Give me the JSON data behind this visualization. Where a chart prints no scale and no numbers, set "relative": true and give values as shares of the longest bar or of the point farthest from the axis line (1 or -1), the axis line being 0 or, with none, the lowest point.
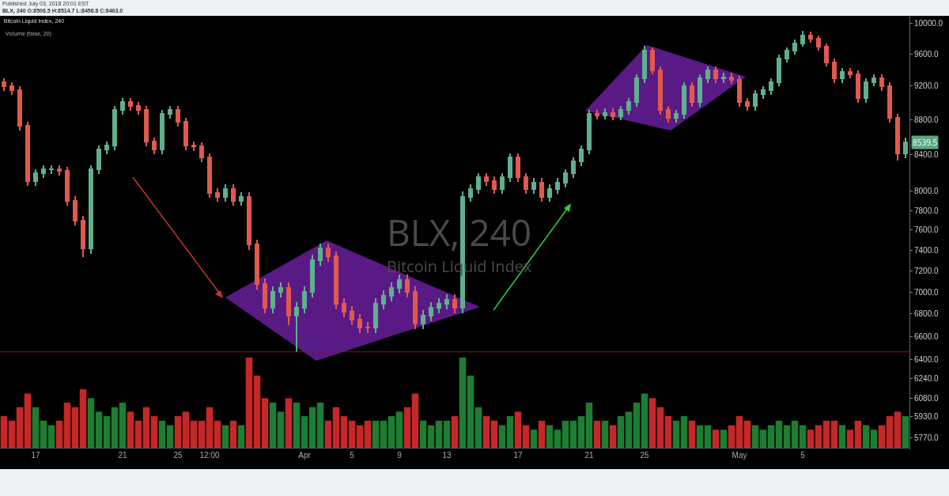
{
  "chart_data": [
    {
      "type": "candlestick",
      "title": "Bitcoin Liquid Index, 240",
      "log": "y",
      "annotations": [
        "Published July 03, 2018 20:01 EST",
        "BLX, 240 O:8506.5 H:8514.7 L:8456.8 C:8463.0",
        "Volume (false, 20)",
        "BLX, 240",
        "Bitcoin Liquid Index",
        {
          "text": "8539.5",
          "y": 8539.5
        }
      ],
      "categories": [
        null,
        null,
        null,
        null,
        "17",
        null,
        null,
        null,
        null,
        null,
        null,
        null,
        null,
        null,
        null,
        "21",
        null,
        null,
        null,
        null,
        null,
        null,
        "25",
        null,
        null,
        null,
        "12:00",
        null,
        null,
        null,
        null,
        null,
        null,
        null,
        null,
        null,
        null,
        null,
        "Apr",
        null,
        null,
        null,
        null,
        null,
        "5",
        null,
        null,
        null,
        null,
        null,
        "9",
        null,
        null,
        null,
        null,
        null,
        "13",
        null,
        null,
        null,
        null,
        null,
        null,
        null,
        null,
        "17",
        null,
        null,
        null,
        null,
        null,
        null,
        null,
        null,
        "21",
        null,
        null,
        null,
        null,
        null,
        null,
        "25",
        null,
        null,
        null,
        null,
        null,
        null,
        null,
        null,
        null,
        null,
        null,
        "May",
        null,
        null,
        null,
        null,
        null,
        null,
        null,
        "5",
        null,
        null,
        null,
        null,
        null,
        null,
        null,
        null,
        null,
        null,
        null,
        null,
        null
      ],
      "ohlc": [
        [
          9244,
          9294,
          9145,
          9195
        ],
        [
          9195,
          9245,
          9097,
          9147
        ],
        [
          9147,
          9197,
          8675,
          8725
        ],
        [
          8725,
          8775,
          8057,
          8107
        ],
        [
          8107,
          8242,
          8057,
          8192
        ],
        [
          8192,
          8285,
          8142,
          8235
        ],
        [
          8235,
          8285,
          8185,
          8240
        ],
        [
          8240,
          8285,
          8168,
          8218
        ],
        [
          8218,
          8268,
          7847,
          7897
        ],
        [
          7897,
          7947,
          7643,
          7693
        ],
        [
          7693,
          7743,
          7330,
          7416
        ],
        [
          7416,
          8285,
          7366,
          8235
        ],
        [
          8235,
          8504,
          8185,
          8454
        ],
        [
          8454,
          8548,
          8404,
          8498
        ],
        [
          8498,
          8960,
          8448,
          8910
        ],
        [
          8910,
          9054,
          8860,
          9004
        ],
        [
          9004,
          9054,
          8907,
          8957
        ],
        [
          8957,
          9007,
          8860,
          8910
        ],
        [
          8910,
          8960,
          8493,
          8543
        ],
        [
          8543,
          8593,
          8404,
          8454
        ],
        [
          8454,
          8913,
          8404,
          8863
        ],
        [
          8863,
          8960,
          8813,
          8910
        ],
        [
          8910,
          8960,
          8721,
          8771
        ],
        [
          8771,
          8821,
          8448,
          8498
        ],
        [
          8498,
          8548,
          8440,
          8490
        ],
        [
          8490,
          8540,
          8316,
          8366
        ],
        [
          8366,
          8416,
          7930,
          7980
        ],
        [
          7980,
          8030,
          7889,
          7939
        ],
        [
          7939,
          8072,
          7889,
          8022
        ],
        [
          8022,
          8072,
          7847,
          7897
        ],
        [
          7897,
          7989,
          7847,
          7939
        ],
        [
          7939,
          7989,
          7405,
          7455
        ],
        [
          7455,
          7505,
          7025,
          7075
        ],
        [
          7075,
          7125,
          6807,
          6857
        ],
        [
          6857,
          7052,
          6807,
          7002
        ],
        [
          7002,
          7088,
          6952,
          7038
        ],
        [
          7038,
          7088,
          6700,
          6785
        ],
        [
          6785,
          6907,
          6460,
          6857
        ],
        [
          6857,
          7052,
          6807,
          7002
        ],
        [
          7002,
          7351,
          6952,
          7301
        ],
        [
          7301,
          7466,
          7251,
          7416
        ],
        [
          7416,
          7466,
          7289,
          7339
        ],
        [
          7339,
          7389,
          6843,
          6893
        ],
        [
          6893,
          6943,
          6771,
          6821
        ],
        [
          6821,
          6871,
          6700,
          6750
        ],
        [
          6750,
          6800,
          6630,
          6680
        ],
        [
          6680,
          6730,
          6625,
          6675
        ],
        [
          6675,
          6943,
          6625,
          6893
        ],
        [
          6893,
          7015,
          6843,
          6965
        ],
        [
          6965,
          7088,
          6915,
          7038
        ],
        [
          7038,
          7162,
          6988,
          7112
        ],
        [
          7112,
          7162,
          6952,
          7002
        ],
        [
          7002,
          7052,
          6665,
          6715
        ],
        [
          6715,
          6835,
          6665,
          6785
        ],
        [
          6785,
          6907,
          6735,
          6857
        ],
        [
          6857,
          6943,
          6807,
          6893
        ],
        [
          6893,
          6979,
          6843,
          6929
        ],
        [
          6929,
          6979,
          6807,
          6857
        ],
        [
          6857,
          8000,
          6807,
          7939
        ],
        [
          7939,
          8072,
          7889,
          8022
        ],
        [
          8022,
          8199,
          7972,
          8149
        ],
        [
          8149,
          8199,
          8057,
          8107
        ],
        [
          8107,
          8157,
          7972,
          8022
        ],
        [
          8022,
          8199,
          7972,
          8149
        ],
        [
          8149,
          8416,
          8099,
          8366
        ],
        [
          8366,
          8416,
          8099,
          8149
        ],
        [
          8149,
          8199,
          7972,
          8022
        ],
        [
          8022,
          8140,
          7972,
          8090
        ],
        [
          8090,
          8140,
          7889,
          7939
        ],
        [
          7939,
          8072,
          7889,
          8022
        ],
        [
          8022,
          8140,
          7972,
          8090
        ],
        [
          8090,
          8242,
          8040,
          8192
        ],
        [
          8192,
          8372,
          8142,
          8322
        ],
        [
          8322,
          8504,
          8272,
          8454
        ],
        [
          8454,
          8913,
          8404,
          8863
        ],
        [
          8863,
          8913,
          8800,
          8850
        ],
        [
          8850,
          8930,
          8800,
          8880
        ],
        [
          8880,
          8930,
          8790,
          8840
        ],
        [
          8840,
          8960,
          8790,
          8910
        ],
        [
          8910,
          9054,
          8860,
          9004
        ],
        [
          9004,
          9342,
          8954,
          9292
        ],
        [
          9292,
          9700,
          9242,
          9639
        ],
        [
          9639,
          9689,
          9340,
          9390
        ],
        [
          9390,
          9440,
          8860,
          8910
        ],
        [
          8910,
          8960,
          8767,
          8817
        ],
        [
          8817,
          8913,
          8767,
          8863
        ],
        [
          8863,
          9245,
          8813,
          9195
        ],
        [
          9195,
          9245,
          8954,
          9004
        ],
        [
          9004,
          9342,
          8954,
          9292
        ],
        [
          9292,
          9440,
          9242,
          9390
        ],
        [
          9390,
          9440,
          9242,
          9292
        ],
        [
          9292,
          9360,
          9242,
          9310
        ],
        [
          9310,
          9360,
          9230,
          9280
        ],
        [
          9280,
          9330,
          8954,
          9004
        ],
        [
          9004,
          9054,
          8907,
          8957
        ],
        [
          8957,
          9149,
          8907,
          9099
        ],
        [
          9099,
          9197,
          9049,
          9147
        ],
        [
          9147,
          9294,
          9097,
          9244
        ],
        [
          9244,
          9589,
          9194,
          9539
        ],
        [
          9539,
          9689,
          9489,
          9639
        ],
        [
          9639,
          9790,
          9589,
          9740
        ],
        [
          9740,
          9900,
          9690,
          9843
        ],
        [
          9843,
          9893,
          9742,
          9792
        ],
        [
          9792,
          9842,
          9640,
          9690
        ],
        [
          9690,
          9740,
          9439,
          9489
        ],
        [
          9489,
          9539,
          9242,
          9292
        ],
        [
          9292,
          9420,
          9242,
          9370
        ],
        [
          9370,
          9420,
          9291,
          9341
        ],
        [
          9341,
          9391,
          9002,
          9052
        ],
        [
          9052,
          9294,
          9002,
          9244
        ],
        [
          9244,
          9342,
          9194,
          9292
        ],
        [
          9292,
          9342,
          9145,
          9195
        ],
        [
          9195,
          9245,
          8767,
          8817
        ],
        [
          8817,
          8867,
          8330,
          8410
        ],
        [
          8410,
          8590,
          8360,
          8539.5
        ]
      ],
      "ylim": [
        5680,
        10100
      ],
      "yticks": [
        {
          "value": 10000,
          "label": "10000.0"
        },
        {
          "value": 9600,
          "label": "9600.0"
        },
        {
          "value": 9200,
          "label": "9200.0"
        },
        {
          "value": 8800,
          "label": "8800.0"
        },
        {
          "value": 8400,
          "label": "8400.0"
        },
        {
          "value": 8000,
          "label": "8000.0"
        },
        {
          "value": 7800,
          "label": "7800.0"
        },
        {
          "value": 7600,
          "label": "7600.0"
        },
        {
          "value": 7400,
          "label": "7400.0"
        },
        {
          "value": 7200,
          "label": "7200.0"
        },
        {
          "value": 7000,
          "label": "7000.0"
        },
        {
          "value": 6800,
          "label": "6800.0"
        },
        {
          "value": 6600,
          "label": "6600.0"
        },
        {
          "value": 6400,
          "label": "6400.0"
        },
        {
          "value": 6240,
          "label": "6240.0"
        },
        {
          "value": 6080,
          "label": "6080.0"
        },
        {
          "value": 5930,
          "label": "5930.0"
        },
        {
          "value": 5770,
          "label": "5770.0"
        }
      ],
      "ref_lines": [
        {
          "axis": "y",
          "value": 6465,
          "color": "#7a1c1c"
        }
      ]
    },
    {
      "type": "bar",
      "relative": true,
      "categories": [
        null,
        null,
        null,
        null,
        null,
        null,
        null,
        null,
        null,
        null,
        null,
        null,
        null,
        null,
        null,
        null,
        null,
        null,
        null,
        null,
        null,
        null,
        null,
        null,
        null,
        null,
        null,
        null,
        null,
        null,
        null,
        null,
        null,
        null,
        null,
        null,
        null,
        null,
        null,
        null,
        null,
        null,
        null,
        null,
        null,
        null,
        null,
        null,
        null,
        null,
        null,
        null,
        null,
        null,
        null,
        null,
        null,
        null,
        null,
        null,
        null,
        null,
        null,
        null,
        null,
        null,
        null,
        null,
        null,
        null,
        null,
        null,
        null,
        null,
        null,
        null,
        null,
        null,
        null,
        null,
        null,
        null,
        null,
        null,
        null,
        null,
        null,
        null,
        null,
        null,
        null,
        null,
        null,
        null,
        null,
        null,
        null,
        null,
        null,
        null,
        null,
        null,
        null,
        null,
        null,
        null,
        null,
        null,
        null,
        null,
        null,
        null,
        null,
        null,
        null
      ],
      "values": [
        0.35,
        0.3,
        0.45,
        0.6,
        0.45,
        0.3,
        0.25,
        0.3,
        0.5,
        0.45,
        0.65,
        0.55,
        0.4,
        0.35,
        0.45,
        0.5,
        0.4,
        0.3,
        0.45,
        0.35,
        0.3,
        0.25,
        0.35,
        0.4,
        0.3,
        0.3,
        0.45,
        0.3,
        0.25,
        0.3,
        0.25,
        1,
        0.8,
        0.55,
        0.5,
        0.4,
        0.55,
        0.5,
        0.35,
        0.45,
        0.5,
        0.3,
        0.45,
        0.35,
        0.3,
        0.25,
        0.3,
        0.3,
        0.3,
        0.35,
        0.4,
        0.45,
        0.6,
        0.3,
        0.25,
        0.3,
        0.3,
        0.35,
        1,
        0.8,
        0.45,
        0.35,
        0.3,
        0.25,
        0.35,
        0.4,
        0.25,
        0.2,
        0.3,
        0.25,
        0.2,
        0.3,
        0.3,
        0.35,
        0.5,
        0.3,
        0.3,
        0.25,
        0.35,
        0.4,
        0.5,
        0.6,
        0.55,
        0.45,
        0.35,
        0.3,
        0.35,
        0.3,
        0.25,
        0.25,
        0.2,
        0.2,
        0.25,
        0.35,
        0.3,
        0.25,
        0.2,
        0.25,
        0.3,
        0.25,
        0.3,
        0.25,
        0.2,
        0.25,
        0.3,
        0.3,
        0.25,
        0.2,
        0.3,
        0.25,
        0.2,
        0.25,
        0.35,
        0.4,
        0.35
      ],
      "colors": [
        "#c62828",
        "#c62828",
        "#c62828",
        "#c62828",
        "#1e7d32",
        "#1e7d32",
        "#1e7d32",
        "#c62828",
        "#c62828",
        "#c62828",
        "#c62828",
        "#1e7d32",
        "#1e7d32",
        "#1e7d32",
        "#1e7d32",
        "#1e7d32",
        "#c62828",
        "#c62828",
        "#c62828",
        "#c62828",
        "#1e7d32",
        "#1e7d32",
        "#c62828",
        "#c62828",
        "#c62828",
        "#c62828",
        "#c62828",
        "#c62828",
        "#1e7d32",
        "#c62828",
        "#1e7d32",
        "#c62828",
        "#c62828",
        "#c62828",
        "#1e7d32",
        "#1e7d32",
        "#c62828",
        "#1e7d32",
        "#1e7d32",
        "#1e7d32",
        "#1e7d32",
        "#c62828",
        "#c62828",
        "#c62828",
        "#c62828",
        "#c62828",
        "#c62828",
        "#1e7d32",
        "#1e7d32",
        "#1e7d32",
        "#1e7d32",
        "#c62828",
        "#c62828",
        "#1e7d32",
        "#1e7d32",
        "#1e7d32",
        "#1e7d32",
        "#c62828",
        "#1e7d32",
        "#1e7d32",
        "#1e7d32",
        "#c62828",
        "#c62828",
        "#1e7d32",
        "#1e7d32",
        "#c62828",
        "#c62828",
        "#1e7d32",
        "#c62828",
        "#1e7d32",
        "#1e7d32",
        "#1e7d32",
        "#1e7d32",
        "#1e7d32",
        "#1e7d32",
        "#c62828",
        "#1e7d32",
        "#c62828",
        "#1e7d32",
        "#1e7d32",
        "#1e7d32",
        "#1e7d32",
        "#c62828",
        "#c62828",
        "#c62828",
        "#1e7d32",
        "#1e7d32",
        "#c62828",
        "#1e7d32",
        "#1e7d32",
        "#c62828",
        "#1e7d32",
        "#c62828",
        "#c62828",
        "#c62828",
        "#1e7d32",
        "#1e7d32",
        "#1e7d32",
        "#1e7d32",
        "#1e7d32",
        "#1e7d32",
        "#1e7d32",
        "#c62828",
        "#c62828",
        "#c62828",
        "#c62828",
        "#1e7d32",
        "#c62828",
        "#c62828",
        "#1e7d32",
        "#1e7d32",
        "#c62828",
        "#c62828",
        "#c62828",
        "#1e7d32"
      ]
    }
  ]
}
